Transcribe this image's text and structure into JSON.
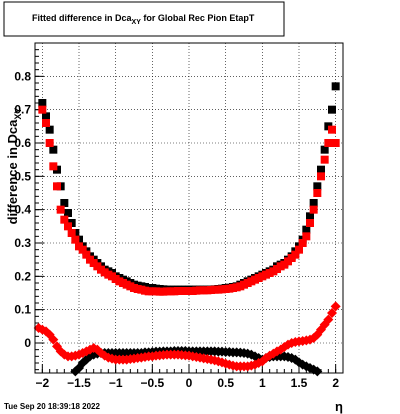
{
  "chart_data": {
    "type": "scatter",
    "title": "Fitted difference in Dca",
    "title_subscript": "XY",
    "title_suffix": " for Global Rec Pion EtapT",
    "xlabel": "η",
    "ylabel": "difference in Dca",
    "ylabel_subscript": "XY",
    "xlim": [
      -2.1,
      2.1
    ],
    "ylim": [
      -0.09,
      0.9
    ],
    "x_ticks": [
      -2,
      -1.5,
      -1,
      -0.5,
      0,
      0.5,
      1,
      1.5,
      2
    ],
    "x_tick_labels": [
      "−2",
      "−1.5",
      "−1",
      "−0.5",
      "0",
      "0.5",
      "1",
      "1.5",
      "2"
    ],
    "y_ticks": [
      0,
      0.1,
      0.2,
      0.3,
      0.4,
      0.5,
      0.6,
      0.7,
      0.8
    ],
    "y_tick_labels": [
      "0",
      "0.1",
      "0.2",
      "0.3",
      "0.4",
      "0.5",
      "0.6",
      "0.7",
      "0.8"
    ],
    "grid": true,
    "timestamp": "Tue Sep 20 18:39:18 2022",
    "series": [
      {
        "color": "#000000",
        "marker": "square",
        "x": [
          -2.0,
          -1.95,
          -1.9,
          -1.85,
          -1.8,
          -1.75,
          -1.7,
          -1.65,
          -1.6,
          -1.55,
          -1.5,
          -1.45,
          -1.4,
          -1.35,
          -1.3,
          -1.25,
          -1.2,
          -1.15,
          -1.1,
          -1.05,
          -1.0,
          -0.95,
          -0.9,
          -0.85,
          -0.8,
          -0.75,
          -0.7,
          -0.65,
          -0.6,
          -0.55,
          -0.5,
          -0.45,
          -0.4,
          -0.35,
          -0.3,
          -0.25,
          -0.2,
          -0.15,
          -0.1,
          -0.05,
          0.0,
          0.05,
          0.1,
          0.15,
          0.2,
          0.25,
          0.3,
          0.35,
          0.4,
          0.45,
          0.5,
          0.55,
          0.6,
          0.65,
          0.7,
          0.75,
          0.8,
          0.85,
          0.9,
          0.95,
          1.0,
          1.05,
          1.1,
          1.15,
          1.2,
          1.25,
          1.3,
          1.35,
          1.4,
          1.45,
          1.5,
          1.55,
          1.6,
          1.65,
          1.7,
          1.75,
          1.8,
          1.85,
          1.9,
          1.95,
          2.0
        ],
        "y": [
          0.72,
          0.68,
          0.64,
          0.58,
          0.52,
          0.47,
          0.42,
          0.39,
          0.36,
          0.33,
          0.31,
          0.29,
          0.275,
          0.26,
          0.25,
          0.24,
          0.23,
          0.22,
          0.215,
          0.21,
          0.2,
          0.195,
          0.19,
          0.185,
          0.18,
          0.175,
          0.172,
          0.17,
          0.168,
          0.165,
          0.165,
          0.163,
          0.162,
          0.161,
          0.16,
          0.16,
          0.16,
          0.16,
          0.16,
          0.16,
          0.16,
          0.16,
          0.16,
          0.16,
          0.16,
          0.16,
          0.16,
          0.161,
          0.162,
          0.163,
          0.165,
          0.166,
          0.168,
          0.17,
          0.175,
          0.18,
          0.185,
          0.19,
          0.195,
          0.2,
          0.205,
          0.21,
          0.215,
          0.22,
          0.23,
          0.235,
          0.24,
          0.25,
          0.26,
          0.275,
          0.29,
          0.31,
          0.34,
          0.38,
          0.42,
          0.47,
          0.52,
          0.58,
          0.65,
          0.7,
          0.77
        ]
      },
      {
        "color": "#ff0000",
        "marker": "square",
        "x": [
          -2.0,
          -1.95,
          -1.9,
          -1.85,
          -1.8,
          -1.75,
          -1.7,
          -1.65,
          -1.6,
          -1.55,
          -1.5,
          -1.45,
          -1.4,
          -1.35,
          -1.3,
          -1.25,
          -1.2,
          -1.15,
          -1.1,
          -1.05,
          -1.0,
          -0.95,
          -0.9,
          -0.85,
          -0.8,
          -0.75,
          -0.7,
          -0.65,
          -0.6,
          -0.55,
          -0.5,
          -0.45,
          -0.4,
          -0.35,
          -0.3,
          -0.25,
          -0.2,
          -0.15,
          -0.1,
          -0.05,
          0.0,
          0.05,
          0.1,
          0.15,
          0.2,
          0.25,
          0.3,
          0.35,
          0.4,
          0.45,
          0.5,
          0.55,
          0.6,
          0.65,
          0.7,
          0.75,
          0.8,
          0.85,
          0.9,
          0.95,
          1.0,
          1.05,
          1.1,
          1.15,
          1.2,
          1.25,
          1.3,
          1.35,
          1.4,
          1.45,
          1.5,
          1.55,
          1.6,
          1.65,
          1.7,
          1.75,
          1.8,
          1.85,
          1.9,
          1.95,
          2.0
        ],
        "y": [
          0.7,
          0.66,
          0.6,
          0.53,
          0.47,
          0.4,
          0.37,
          0.35,
          0.33,
          0.31,
          0.29,
          0.28,
          0.265,
          0.25,
          0.24,
          0.23,
          0.22,
          0.212,
          0.205,
          0.2,
          0.192,
          0.185,
          0.18,
          0.175,
          0.17,
          0.165,
          0.162,
          0.16,
          0.157,
          0.155,
          0.155,
          0.155,
          0.154,
          0.154,
          0.155,
          0.155,
          0.155,
          0.156,
          0.156,
          0.156,
          0.156,
          0.156,
          0.157,
          0.158,
          0.158,
          0.158,
          0.159,
          0.16,
          0.16,
          0.161,
          0.162,
          0.163,
          0.165,
          0.167,
          0.17,
          0.175,
          0.18,
          0.185,
          0.19,
          0.195,
          0.2,
          0.205,
          0.21,
          0.215,
          0.222,
          0.23,
          0.235,
          0.245,
          0.255,
          0.265,
          0.28,
          0.3,
          0.32,
          0.36,
          0.4,
          0.45,
          0.5,
          0.55,
          0.6,
          0.64,
          0.6
        ]
      },
      {
        "color": "#000000",
        "marker": "diamond",
        "x": [
          -1.55,
          -1.5,
          -1.45,
          -1.4,
          -1.35,
          -1.3,
          -1.25,
          -1.2,
          -1.15,
          -1.1,
          -1.05,
          -1.0,
          -0.95,
          -0.9,
          -0.85,
          -0.8,
          -0.75,
          -0.7,
          -0.65,
          -0.6,
          -0.55,
          -0.5,
          -0.45,
          -0.4,
          -0.35,
          -0.3,
          -0.25,
          -0.2,
          -0.15,
          -0.1,
          -0.05,
          0.0,
          0.05,
          0.1,
          0.15,
          0.2,
          0.25,
          0.3,
          0.35,
          0.4,
          0.45,
          0.5,
          0.55,
          0.6,
          0.65,
          0.7,
          0.75,
          0.8,
          0.85,
          0.9,
          0.95,
          1.0,
          1.05,
          1.1,
          1.15,
          1.2,
          1.25,
          1.3,
          1.35,
          1.4,
          1.45,
          1.5,
          1.55,
          1.6,
          1.65,
          1.7,
          1.75
        ],
        "y": [
          -0.085,
          -0.075,
          -0.06,
          -0.05,
          -0.04,
          -0.035,
          -0.032,
          -0.03,
          -0.03,
          -0.03,
          -0.03,
          -0.03,
          -0.03,
          -0.03,
          -0.03,
          -0.03,
          -0.03,
          -0.03,
          -0.03,
          -0.028,
          -0.028,
          -0.027,
          -0.026,
          -0.026,
          -0.025,
          -0.025,
          -0.025,
          -0.024,
          -0.024,
          -0.024,
          -0.024,
          -0.025,
          -0.025,
          -0.025,
          -0.025,
          -0.025,
          -0.025,
          -0.025,
          -0.025,
          -0.026,
          -0.026,
          -0.027,
          -0.027,
          -0.028,
          -0.028,
          -0.029,
          -0.03,
          -0.032,
          -0.035,
          -0.04,
          -0.045,
          -0.05,
          -0.045,
          -0.042,
          -0.04,
          -0.04,
          -0.04,
          -0.04,
          -0.042,
          -0.045,
          -0.05,
          -0.058,
          -0.065,
          -0.07,
          -0.075,
          -0.08,
          -0.085
        ]
      },
      {
        "color": "#ff0000",
        "marker": "diamond",
        "x": [
          -2.05,
          -2.0,
          -1.95,
          -1.9,
          -1.85,
          -1.8,
          -1.75,
          -1.7,
          -1.65,
          -1.6,
          -1.55,
          -1.5,
          -1.45,
          -1.4,
          -1.35,
          -1.3,
          -1.25,
          -1.2,
          -1.15,
          -1.1,
          -1.05,
          -1.0,
          -0.95,
          -0.9,
          -0.85,
          -0.8,
          -0.75,
          -0.7,
          -0.65,
          -0.6,
          -0.55,
          -0.5,
          -0.45,
          -0.4,
          -0.35,
          -0.3,
          -0.25,
          -0.2,
          -0.15,
          -0.1,
          -0.05,
          0.0,
          0.05,
          0.1,
          0.15,
          0.2,
          0.25,
          0.3,
          0.35,
          0.4,
          0.45,
          0.5,
          0.55,
          0.6,
          0.65,
          0.7,
          0.75,
          0.8,
          0.85,
          0.9,
          0.95,
          1.0,
          1.05,
          1.1,
          1.15,
          1.2,
          1.25,
          1.3,
          1.35,
          1.4,
          1.45,
          1.5,
          1.55,
          1.6,
          1.65,
          1.7,
          1.75,
          1.8,
          1.85,
          1.9,
          1.95,
          2.0
        ],
        "y": [
          0.045,
          0.04,
          0.035,
          0.025,
          0.01,
          -0.01,
          -0.025,
          -0.035,
          -0.04,
          -0.04,
          -0.038,
          -0.035,
          -0.03,
          -0.025,
          -0.02,
          -0.015,
          -0.02,
          -0.03,
          -0.038,
          -0.044,
          -0.047,
          -0.05,
          -0.05,
          -0.05,
          -0.05,
          -0.048,
          -0.047,
          -0.045,
          -0.044,
          -0.042,
          -0.04,
          -0.04,
          -0.038,
          -0.037,
          -0.036,
          -0.035,
          -0.035,
          -0.035,
          -0.035,
          -0.036,
          -0.037,
          -0.038,
          -0.04,
          -0.042,
          -0.044,
          -0.046,
          -0.048,
          -0.05,
          -0.052,
          -0.055,
          -0.058,
          -0.062,
          -0.065,
          -0.068,
          -0.07,
          -0.07,
          -0.07,
          -0.07,
          -0.068,
          -0.065,
          -0.06,
          -0.055,
          -0.045,
          -0.038,
          -0.032,
          -0.025,
          -0.02,
          -0.012,
          -0.005,
          0.0,
          0.003,
          0.005,
          0.006,
          0.008,
          0.01,
          0.015,
          0.025,
          0.04,
          0.055,
          0.07,
          0.09,
          0.11
        ]
      }
    ]
  }
}
